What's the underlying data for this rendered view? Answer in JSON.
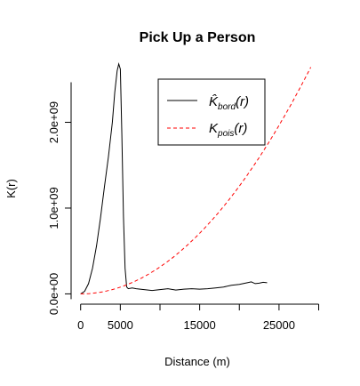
{
  "chart_data": {
    "type": "line",
    "title": "Pick Up a Person",
    "xlabel": "Distance (m)",
    "ylabel": "K(r)",
    "xlim": [
      -1200,
      30500
    ],
    "ylim": [
      -120000000,
      2700000000
    ],
    "x_ticks": [
      0,
      5000,
      15000,
      25000
    ],
    "x_tick_labels": [
      "0",
      "5000",
      "15000",
      "25000"
    ],
    "x_minor_ticks": [
      10000,
      20000,
      30000
    ],
    "y_ticks": [
      0,
      1000000000,
      2000000000
    ],
    "y_tick_labels": [
      "0.0e+00",
      "1.0e+09",
      "2.0e+09"
    ],
    "legend": {
      "position": "top-right"
    },
    "series": [
      {
        "name": "K̂_bord(r)",
        "label_main": "K̂",
        "label_sub": "bord",
        "label_arg": "(r)",
        "color": "#000000",
        "style": "solid",
        "x": [
          0,
          500,
          1000,
          1500,
          2000,
          2500,
          3000,
          3500,
          4000,
          4300,
          4600,
          4800,
          5000,
          5200,
          5400,
          5600,
          5800,
          6000,
          6500,
          7000,
          8000,
          9000,
          10000,
          11000,
          12000,
          13000,
          14000,
          15000,
          16000,
          17000,
          18000,
          19000,
          20000,
          21000,
          21500,
          22000,
          22500,
          23000,
          23500
        ],
        "y": [
          0,
          30000000,
          120000000,
          300000000,
          560000000,
          880000000,
          1250000000,
          1600000000,
          2000000000,
          2350000000,
          2600000000,
          2680000000,
          2620000000,
          1850000000,
          900000000,
          300000000,
          80000000,
          60000000,
          70000000,
          60000000,
          50000000,
          40000000,
          50000000,
          60000000,
          45000000,
          55000000,
          60000000,
          55000000,
          60000000,
          70000000,
          80000000,
          100000000,
          110000000,
          130000000,
          140000000,
          120000000,
          125000000,
          135000000,
          130000000
        ]
      },
      {
        "name": "K_pois(r)",
        "label_main": "K",
        "label_sub": "pois",
        "label_arg": "(r)",
        "color": "#ff0000",
        "style": "dashed",
        "function": "pi*r^2",
        "x_range": [
          0,
          29000
        ]
      }
    ]
  }
}
